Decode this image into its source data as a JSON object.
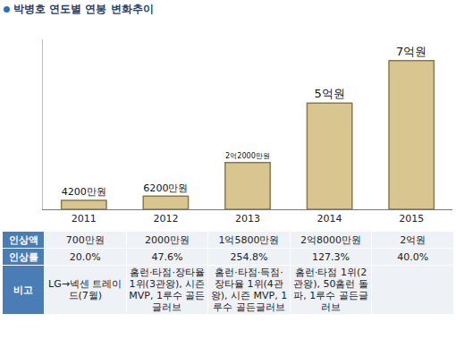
{
  "chart_data": {
    "type": "bar",
    "title": "박병호 연도별 연봉 변화추이",
    "categories": [
      "2011",
      "2012",
      "2013",
      "2014",
      "2015"
    ],
    "values": [
      4200,
      6200,
      22000,
      50000,
      70000
    ],
    "value_labels": [
      "4200만원",
      "6200만원",
      "2억2000만원",
      "5억원",
      "7억원"
    ],
    "data_labels": true,
    "color": "#d9c58f",
    "ylim": [
      0,
      80000
    ],
    "grid": false,
    "tick_labels": "x"
  },
  "table": {
    "rows": [
      [
        "인상액",
        "700만원",
        "2000만원",
        "1억5800만원",
        "2억8000만원",
        "2억원"
      ],
      [
        "인상률",
        "20.0%",
        "47.6%",
        "254.8%",
        "127.3%",
        "40.0%"
      ],
      [
        "비고",
        "LG→넥센 트레이드(7월)",
        "홈런·타점·장타율 1위(3관왕), 시즌 MVP, 1루수 골든글러브",
        "홈런·타점·득점·장타율 1위(4관왕), 시즌 MVP, 1루수 골든글러브",
        "홈런·타점 1위(2관왕), 50홈런 돌파, 1루수 골든글러브",
        null
      ]
    ]
  }
}
